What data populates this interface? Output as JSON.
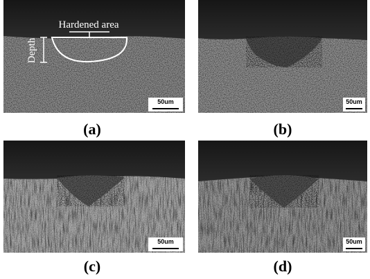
{
  "panels": [
    {
      "label": "(a)",
      "scale_bar": "50um",
      "annotations": [
        "Hardened area",
        "Depth"
      ]
    },
    {
      "label": "(b)",
      "scale_bar": "50um"
    },
    {
      "label": "(c)",
      "scale_bar": "50um"
    },
    {
      "label": "(d)",
      "scale_bar": "50um"
    }
  ]
}
